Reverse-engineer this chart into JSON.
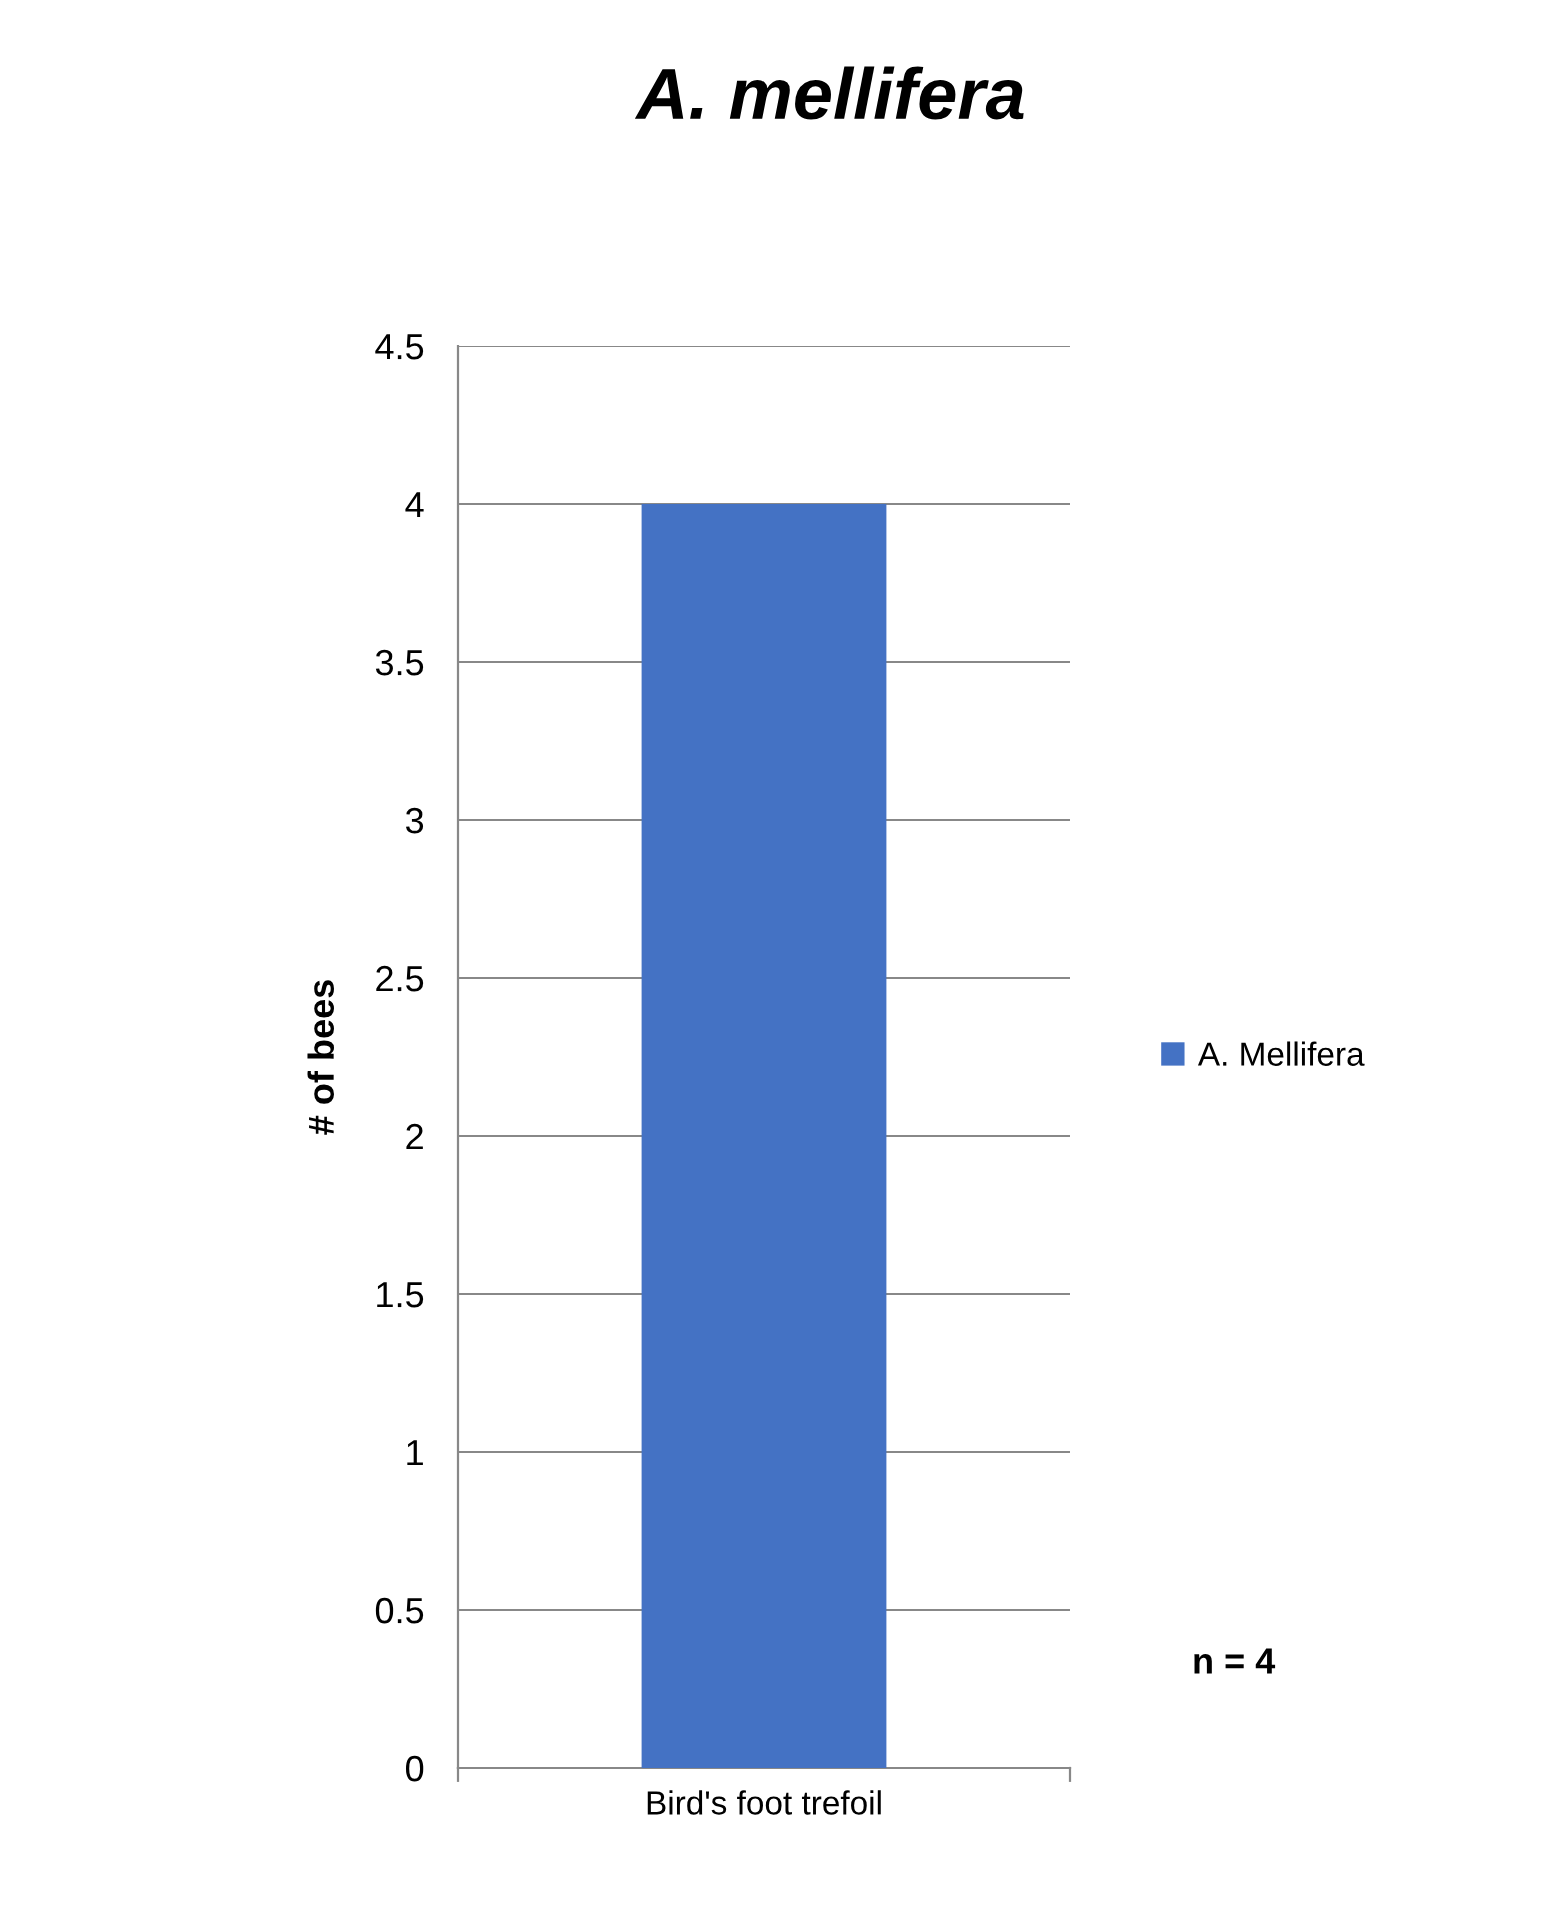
{
  "chart_data": {
    "type": "bar",
    "title": "A. mellifera",
    "ylabel": "# of bees",
    "categories": [
      "Bird's foot trefoil"
    ],
    "series": [
      {
        "name": "A. Mellifera",
        "color": "#4472c4",
        "values": [
          4
        ]
      }
    ],
    "ylim": [
      0,
      4.5
    ],
    "yticks": [
      0,
      0.5,
      1,
      1.5,
      2,
      2.5,
      3,
      3.5,
      4,
      4.5
    ],
    "grid": "y",
    "legend": "right",
    "annotations": [
      "n = 4"
    ]
  }
}
